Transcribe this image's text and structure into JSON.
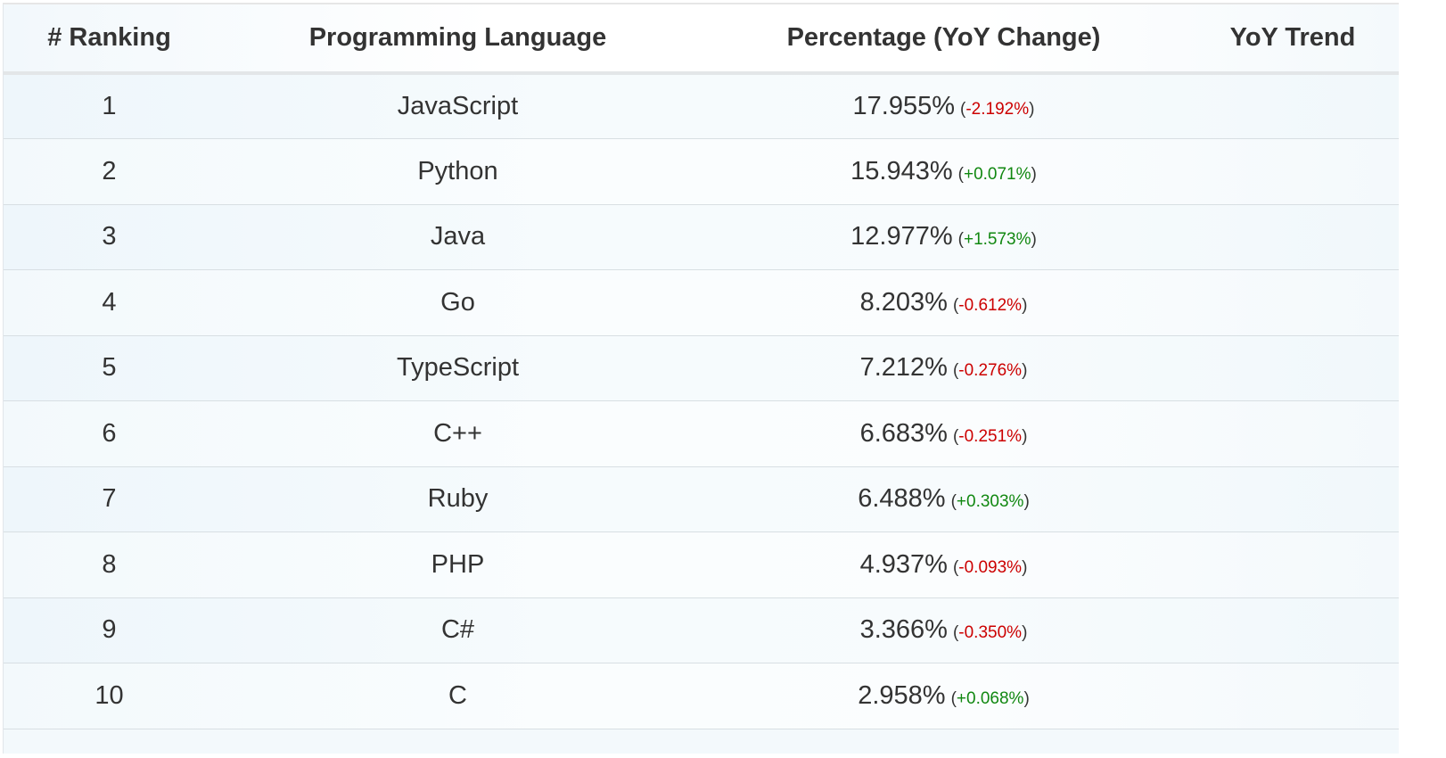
{
  "header": {
    "rank": "# Ranking",
    "language": "Programming Language",
    "percentage": "Percentage (YoY Change)",
    "trend": "YoY Trend"
  },
  "colors": {
    "negative": "#cc0000",
    "positive": "#118811"
  },
  "rows": [
    {
      "rank": "1",
      "language": "JavaScript",
      "pct": "17.955%",
      "change": "-2.192%",
      "direction": "down"
    },
    {
      "rank": "2",
      "language": "Python",
      "pct": "15.943%",
      "change": "+0.071%",
      "direction": "up"
    },
    {
      "rank": "3",
      "language": "Java",
      "pct": "12.977%",
      "change": "+1.573%",
      "direction": "up"
    },
    {
      "rank": "4",
      "language": "Go",
      "pct": "8.203%",
      "change": "-0.612%",
      "direction": "down"
    },
    {
      "rank": "5",
      "language": "TypeScript",
      "pct": "7.212%",
      "change": "-0.276%",
      "direction": "down"
    },
    {
      "rank": "6",
      "language": "C++",
      "pct": "6.683%",
      "change": "-0.251%",
      "direction": "down"
    },
    {
      "rank": "7",
      "language": "Ruby",
      "pct": "6.488%",
      "change": "+0.303%",
      "direction": "up"
    },
    {
      "rank": "8",
      "language": "PHP",
      "pct": "4.937%",
      "change": "-0.093%",
      "direction": "down"
    },
    {
      "rank": "9",
      "language": "C#",
      "pct": "3.366%",
      "change": "-0.350%",
      "direction": "down"
    },
    {
      "rank": "10",
      "language": "C",
      "pct": "2.958%",
      "change": "+0.068%",
      "direction": "up"
    }
  ]
}
